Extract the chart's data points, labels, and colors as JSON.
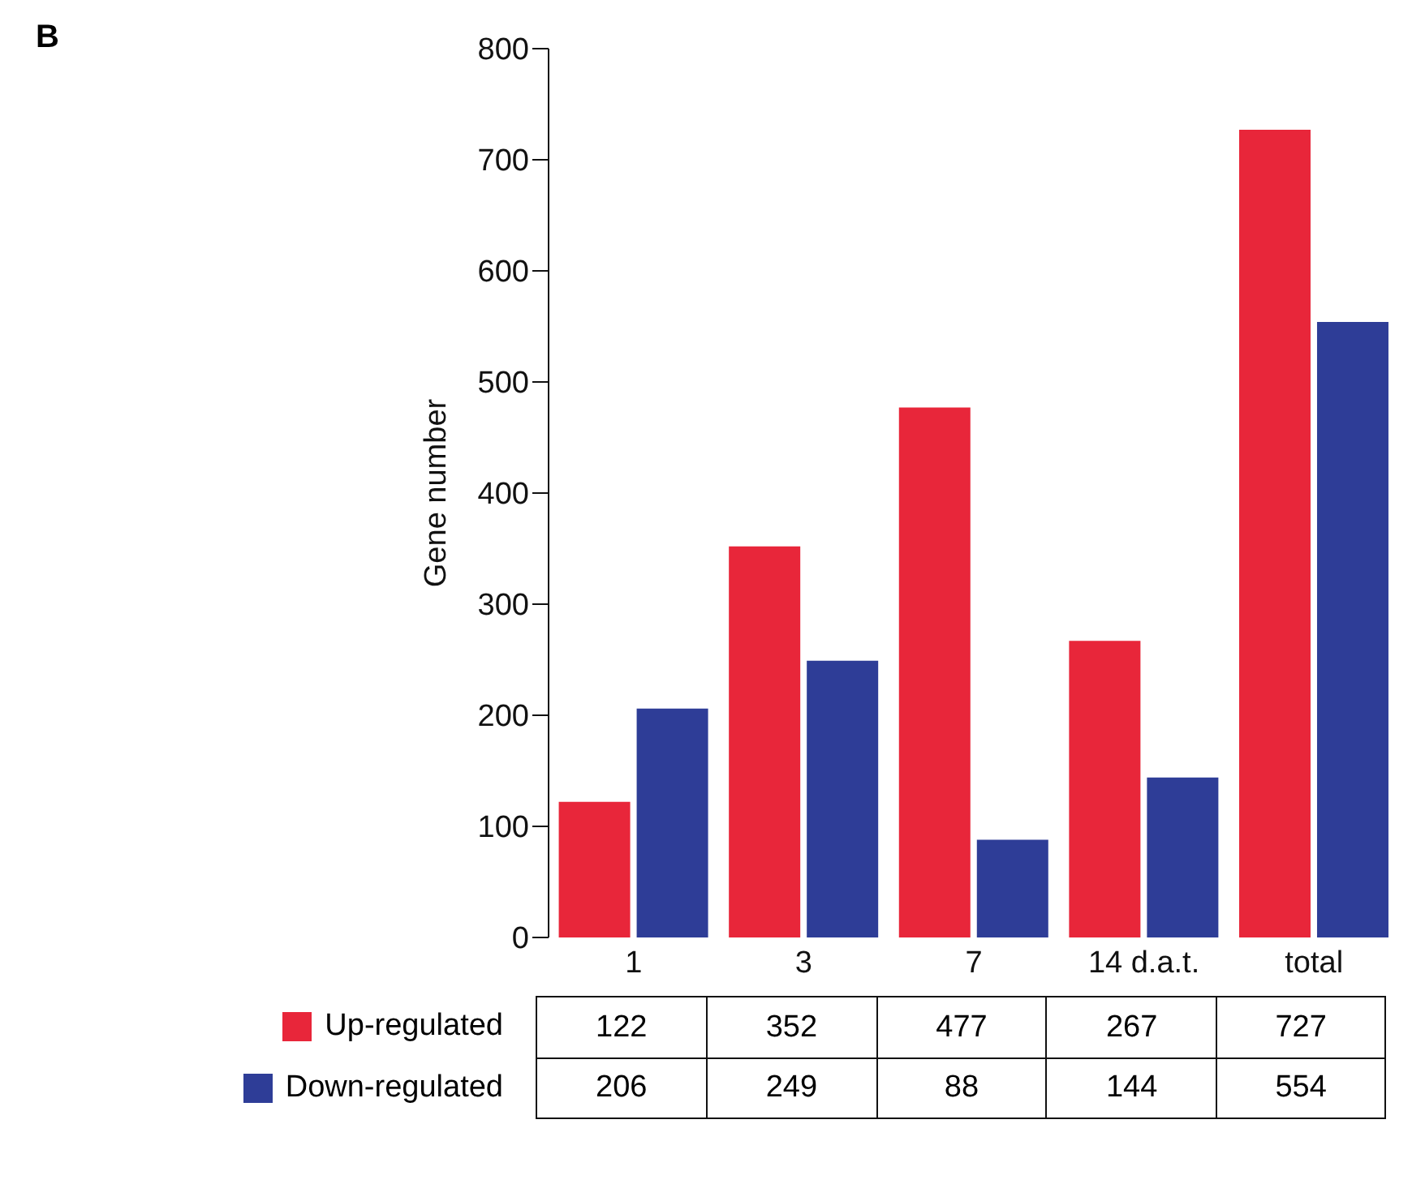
{
  "chart_data": {
    "type": "bar",
    "title": "B",
    "ylabel": "Gene number",
    "categories": [
      "1",
      "3",
      "7",
      "14 d.a.t.",
      "total"
    ],
    "series": [
      {
        "name": "Up-regulated",
        "color": "#e8263a",
        "values": [
          122,
          352,
          477,
          267,
          727
        ]
      },
      {
        "name": "Down-regulated",
        "color": "#2e3d97",
        "values": [
          206,
          249,
          88,
          144,
          554
        ]
      }
    ],
    "ylim": [
      0,
      800
    ],
    "yticks": [
      0,
      100,
      200,
      300,
      400,
      500,
      600,
      700,
      800
    ],
    "grid": false,
    "legend": "bottom",
    "data_labels": true
  }
}
